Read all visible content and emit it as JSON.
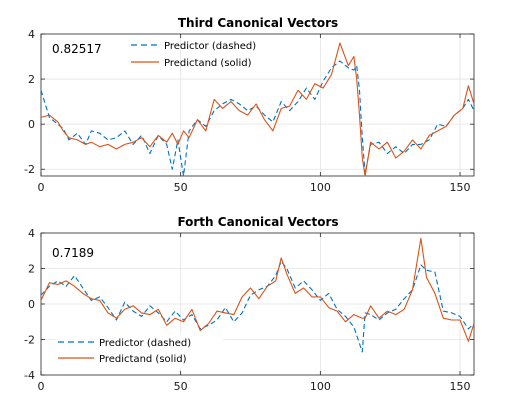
{
  "chart_data": [
    {
      "type": "line",
      "title": "Third Canonical Vectors",
      "annotation": "0.82517",
      "xlim": [
        0,
        155
      ],
      "ylim": [
        -2.3,
        4
      ],
      "xticks": [
        0,
        50,
        100,
        150
      ],
      "yticks": [
        -2,
        0,
        2,
        4
      ],
      "grid": true,
      "legend_position": "top",
      "series": [
        {
          "name": "Predictor (dashed)",
          "color": "#0072BD",
          "style": "dashed",
          "x": [
            0,
            3,
            6,
            8,
            10,
            13,
            16,
            18,
            21,
            24,
            27,
            30,
            33,
            36,
            39,
            42,
            45,
            47,
            49,
            51,
            53,
            56,
            59,
            62,
            65,
            68,
            71,
            74,
            77,
            80,
            83,
            86,
            89,
            92,
            95,
            98,
            101,
            104,
            107,
            110,
            112,
            113,
            114,
            115,
            116,
            118,
            121,
            124,
            127,
            130,
            133,
            136,
            139,
            142,
            145,
            148,
            151,
            153,
            155
          ],
          "values": [
            1.5,
            0.3,
            0.0,
            -0.2,
            -0.7,
            -0.4,
            -0.9,
            -0.3,
            -0.4,
            -0.7,
            -0.6,
            -0.3,
            -0.9,
            -0.5,
            -1.3,
            -0.5,
            -0.9,
            -2.0,
            -0.7,
            -2.3,
            -0.3,
            0.2,
            -0.1,
            0.6,
            0.9,
            1.1,
            0.9,
            0.6,
            0.8,
            0.4,
            0.1,
            1.0,
            0.6,
            1.0,
            1.6,
            1.1,
            1.9,
            2.5,
            2.8,
            2.5,
            2.4,
            2.6,
            1.5,
            -0.6,
            -2.2,
            -0.9,
            -0.8,
            -1.3,
            -1.0,
            -1.3,
            -0.9,
            -0.9,
            -0.7,
            0.0,
            -0.1,
            0.4,
            0.7,
            1.1,
            0.6
          ]
        },
        {
          "name": "Predictand (solid)",
          "color": "#D95319",
          "style": "solid",
          "x": [
            0,
            3,
            6,
            8,
            10,
            13,
            16,
            18,
            21,
            24,
            27,
            30,
            33,
            36,
            39,
            42,
            45,
            47,
            49,
            51,
            53,
            56,
            59,
            62,
            65,
            68,
            71,
            74,
            77,
            80,
            83,
            86,
            89,
            92,
            95,
            98,
            101,
            104,
            107,
            110,
            112,
            113,
            114,
            115,
            116,
            118,
            121,
            124,
            127,
            130,
            133,
            136,
            139,
            142,
            145,
            148,
            151,
            153,
            155
          ],
          "values": [
            0.3,
            0.4,
            0.1,
            -0.3,
            -0.6,
            -0.7,
            -0.9,
            -0.8,
            -1.0,
            -0.9,
            -1.1,
            -0.9,
            -0.8,
            -0.6,
            -1.0,
            -0.5,
            -0.8,
            -0.4,
            -0.9,
            -0.3,
            -0.6,
            0.2,
            -0.3,
            1.1,
            0.7,
            1.0,
            0.6,
            0.4,
            0.9,
            0.2,
            -0.3,
            0.7,
            0.8,
            1.5,
            1.1,
            1.8,
            1.6,
            2.2,
            3.6,
            2.6,
            3.0,
            2.0,
            0.4,
            -1.5,
            -2.3,
            -0.8,
            -1.1,
            -0.8,
            -1.5,
            -1.2,
            -0.7,
            -1.1,
            -0.5,
            -0.3,
            -0.1,
            0.4,
            0.7,
            1.7,
            0.9
          ]
        }
      ]
    },
    {
      "type": "line",
      "title": "Forth Canonical Vectors",
      "annotation": "0.7189",
      "xlim": [
        0,
        155
      ],
      "ylim": [
        -4,
        4
      ],
      "xticks": [
        0,
        50,
        100,
        150
      ],
      "yticks": [
        -4,
        -2,
        0,
        2,
        4
      ],
      "grid": true,
      "legend_position": "bottom-left",
      "series": [
        {
          "name": "Predictor (dashed)",
          "color": "#0072BD",
          "style": "dashed",
          "x": [
            0,
            3,
            6,
            9,
            12,
            15,
            18,
            21,
            24,
            27,
            30,
            33,
            36,
            39,
            42,
            45,
            48,
            51,
            54,
            57,
            60,
            63,
            66,
            69,
            72,
            75,
            78,
            81,
            84,
            86,
            88,
            91,
            94,
            97,
            100,
            103,
            106,
            109,
            112,
            115,
            116,
            118,
            121,
            124,
            127,
            130,
            133,
            136,
            138,
            141,
            144,
            147,
            150,
            153,
            155
          ],
          "values": [
            0.5,
            1.0,
            1.3,
            1.0,
            1.6,
            0.9,
            0.2,
            0.4,
            -0.2,
            -0.9,
            0.1,
            -0.4,
            -0.7,
            -0.1,
            -0.5,
            -1.0,
            -0.4,
            -0.9,
            -0.6,
            -1.4,
            -1.2,
            -0.9,
            -0.2,
            -1.0,
            -0.5,
            0.5,
            0.8,
            1.0,
            1.6,
            2.4,
            2.0,
            0.9,
            1.3,
            0.8,
            0.2,
            0.6,
            -0.3,
            -0.7,
            -1.3,
            -2.7,
            -0.5,
            -0.6,
            -0.9,
            -0.5,
            -0.3,
            0.3,
            0.8,
            2.2,
            1.9,
            1.8,
            -0.4,
            -0.5,
            -0.7,
            -1.4,
            -1.1
          ]
        },
        {
          "name": "Predictand (solid)",
          "color": "#D95319",
          "style": "solid",
          "x": [
            0,
            3,
            6,
            9,
            12,
            15,
            18,
            21,
            24,
            27,
            30,
            33,
            36,
            39,
            42,
            45,
            48,
            51,
            54,
            57,
            60,
            63,
            66,
            69,
            72,
            75,
            78,
            81,
            84,
            86,
            88,
            91,
            94,
            97,
            100,
            103,
            106,
            109,
            112,
            115,
            116,
            118,
            121,
            124,
            127,
            130,
            133,
            136,
            138,
            141,
            144,
            147,
            150,
            153,
            155
          ],
          "values": [
            0.2,
            1.2,
            1.1,
            1.3,
            1.0,
            0.6,
            0.3,
            0.2,
            -0.5,
            -0.8,
            -0.3,
            -0.1,
            -0.5,
            -0.6,
            -0.3,
            -1.2,
            -0.8,
            -1.0,
            -0.3,
            -1.5,
            -1.1,
            -0.4,
            -0.5,
            -0.6,
            0.4,
            0.9,
            0.3,
            1.0,
            1.3,
            2.6,
            1.7,
            0.6,
            0.9,
            0.4,
            0.4,
            -0.2,
            -0.4,
            -1.0,
            -0.6,
            -0.8,
            -0.8,
            -0.1,
            -0.8,
            -0.4,
            -0.6,
            -0.3,
            0.8,
            3.7,
            1.5,
            0.6,
            -0.8,
            -0.9,
            -0.9,
            -2.1,
            -1.1
          ]
        }
      ]
    }
  ]
}
